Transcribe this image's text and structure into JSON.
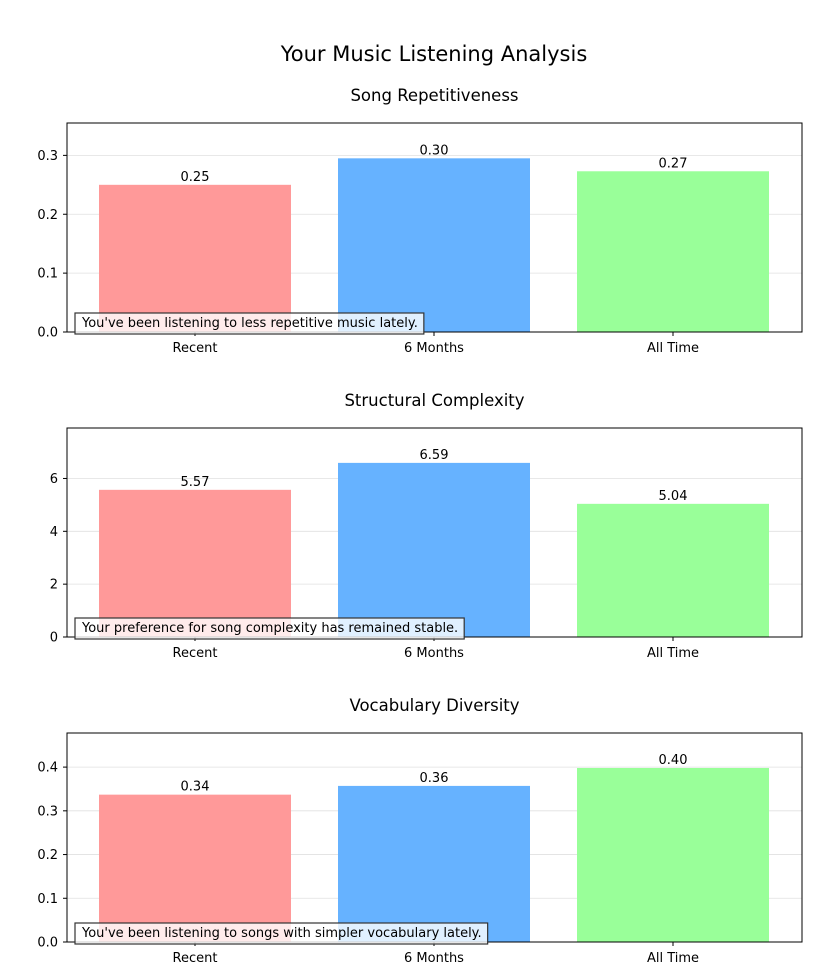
{
  "figure": {
    "title": "Your Music Listening Analysis"
  },
  "colors": {
    "bars": [
      "#ff9999",
      "#66b2ff",
      "#99ff99"
    ],
    "grid": "#e0e0e0"
  },
  "chart_data": [
    {
      "type": "bar",
      "title": "Song Repetitiveness",
      "categories": [
        "Recent",
        "6 Months",
        "All Time"
      ],
      "values": [
        0.25,
        0.295,
        0.273
      ],
      "value_labels": [
        "0.25",
        "0.30",
        "0.27"
      ],
      "ylim": [
        0,
        0.355
      ],
      "yticks": [
        0.0,
        0.1,
        0.2,
        0.3
      ],
      "ytick_labels": [
        "0.0",
        "0.1",
        "0.2",
        "0.3"
      ],
      "grid": true,
      "annotation": "You've been listening to less repetitive music lately."
    },
    {
      "type": "bar",
      "title": "Structural Complexity",
      "categories": [
        "Recent",
        "6 Months",
        "All Time"
      ],
      "values": [
        5.57,
        6.59,
        5.04
      ],
      "value_labels": [
        "5.57",
        "6.59",
        "5.04"
      ],
      "ylim": [
        0,
        7.91
      ],
      "yticks": [
        0,
        2,
        4,
        6
      ],
      "ytick_labels": [
        "0",
        "2",
        "4",
        "6"
      ],
      "grid": true,
      "annotation": "Your preference for song complexity has remained stable."
    },
    {
      "type": "bar",
      "title": "Vocabulary Diversity",
      "categories": [
        "Recent",
        "6 Months",
        "All Time"
      ],
      "values": [
        0.337,
        0.357,
        0.398
      ],
      "value_labels": [
        "0.34",
        "0.36",
        "0.40"
      ],
      "ylim": [
        0,
        0.478
      ],
      "yticks": [
        0.0,
        0.1,
        0.2,
        0.3,
        0.4
      ],
      "ytick_labels": [
        "0.0",
        "0.1",
        "0.2",
        "0.3",
        "0.4"
      ],
      "grid": true,
      "annotation": "You've been listening to songs with simpler vocabulary lately."
    }
  ]
}
